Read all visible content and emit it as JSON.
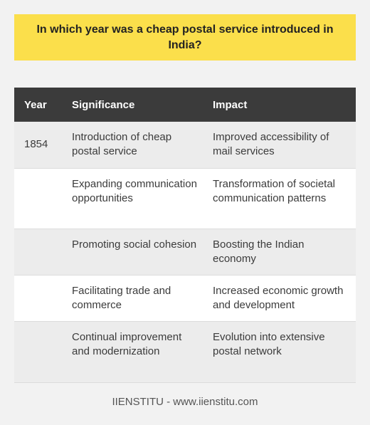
{
  "question": "In which year was a cheap postal service introduced in India?",
  "table": {
    "headers": [
      "Year",
      "Significance",
      "Impact"
    ],
    "rows": [
      {
        "year": "1854",
        "significance": "Introduction of cheap postal service",
        "impact": "Improved accessibility of mail services"
      },
      {
        "year": "",
        "significance": "Expanding communication opportunities",
        "impact": "Transformation of societal communication patterns"
      },
      {
        "year": "",
        "significance": "Promoting social cohesion",
        "impact": "Boosting the Indian economy"
      },
      {
        "year": "",
        "significance": "Facilitating trade and commerce",
        "impact": "Increased economic growth and development"
      },
      {
        "year": "",
        "significance": "Continual improvement and modernization",
        "impact": "Evolution into extensive postal network"
      }
    ]
  },
  "footer": "IIENSTITU - www.iienstitu.com",
  "colors": {
    "question_bg": "#fbdf4b",
    "header_bg": "#3b3b3b",
    "page_bg": "#f2f2f2"
  }
}
